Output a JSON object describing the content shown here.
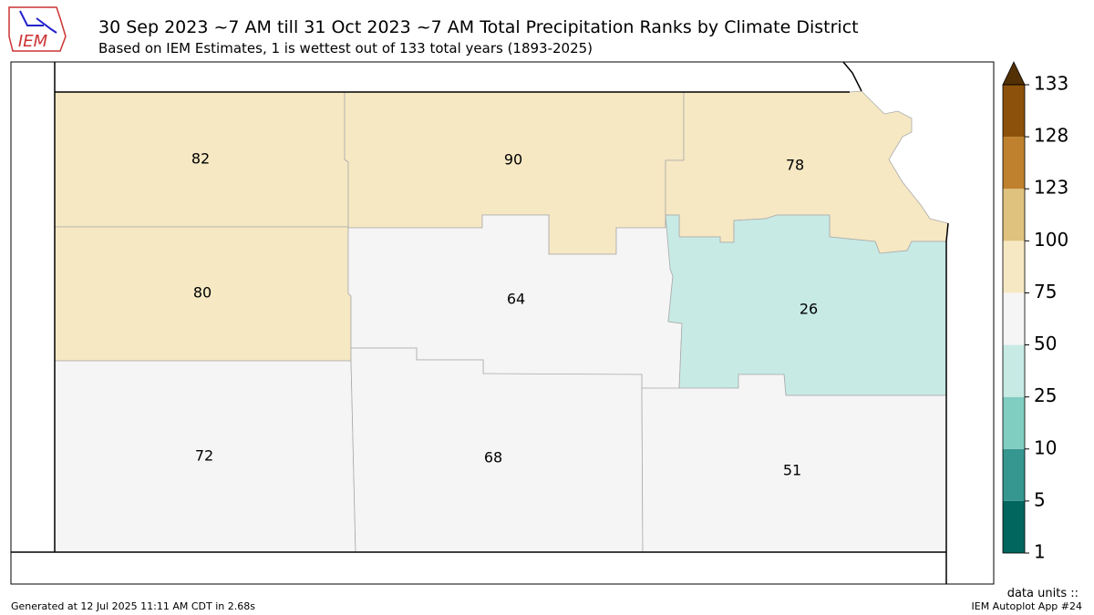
{
  "header": {
    "logo": "IEM",
    "title": "30 Sep 2023 ~7 AM till 31 Oct 2023 ~7 AM Total Precipitation Ranks by Climate District",
    "subtitle": "Based on IEM Estimates, 1 is wettest out of 133 total years (1893-2025)"
  },
  "districts": [
    82,
    90,
    78,
    80,
    64,
    26,
    72,
    68,
    51
  ],
  "colorbar": {
    "ticks": [
      1,
      5,
      10,
      25,
      50,
      75,
      100,
      123,
      128,
      133
    ],
    "colors": [
      "#01665e",
      "#35978f",
      "#80cdc1",
      "#c7eae5",
      "#f5f5f5",
      "#f6e8c3",
      "#dfc27d",
      "#bf812d",
      "#8c510a"
    ],
    "over_color": "#543005"
  },
  "footer": {
    "generated": "Generated at 12 Jul 2025 11:11 AM CDT in 2.68s",
    "units": "data units ::",
    "app": "IEM Autoplot App #24"
  }
}
